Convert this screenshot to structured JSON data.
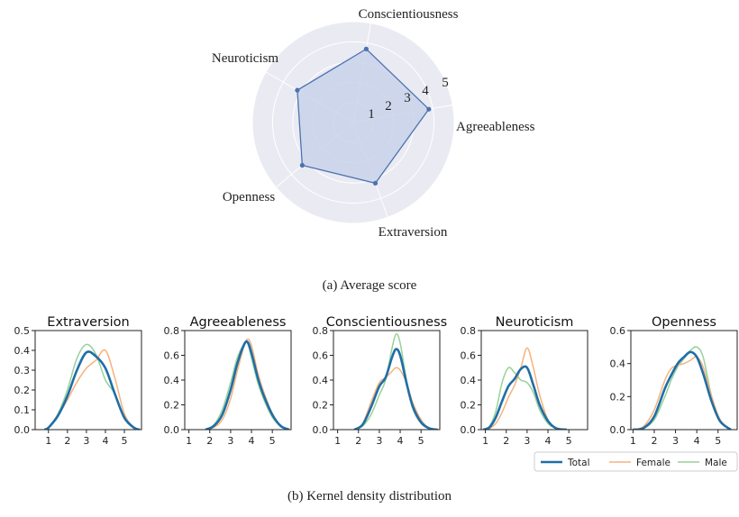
{
  "chart_data": [
    {
      "type": "radar",
      "caption": "(a) Average score",
      "axes": [
        "Agreeableness",
        "Conscientiousness",
        "Neuroticism",
        "Openness",
        "Extraversion"
      ],
      "values": [
        3.8,
        3.7,
        3.2,
        3.3,
        3.2
      ],
      "rlim": [
        0,
        5
      ],
      "rticks": [
        1,
        2,
        3,
        4,
        5
      ],
      "colors": {
        "line": "#4c72b0",
        "fill": "#c9d2ea",
        "background": "#eaeaf2"
      }
    },
    {
      "type": "line",
      "caption": "(b) Kernel density distribution",
      "legend": {
        "placement": "bottom-right",
        "entries": [
          "Total",
          "Female",
          "Male"
        ]
      },
      "colors": {
        "Total": "#1f6ea8",
        "Female": "#f7b27a",
        "Male": "#98d19a"
      },
      "panels": [
        {
          "title": "Extraversion",
          "xlim": [
            0.3,
            5.9
          ],
          "ylim": [
            0,
            0.5
          ],
          "xticks": [
            1,
            2,
            3,
            4,
            5
          ],
          "yticks": [
            0.0,
            0.1,
            0.2,
            0.3,
            0.4,
            0.5
          ],
          "ytick_labels": [
            "0.0",
            "0.1",
            "0.2",
            "0.3",
            "0.4",
            "0.5"
          ],
          "x": [
            0.8,
            1.0,
            1.5,
            2.0,
            2.5,
            3.0,
            3.5,
            4.0,
            4.5,
            5.0,
            5.5,
            5.8
          ],
          "series": [
            {
              "name": "Total",
              "values": [
                0.0,
                0.01,
                0.07,
                0.17,
                0.3,
                0.39,
                0.37,
                0.31,
                0.18,
                0.06,
                0.01,
                0.0
              ]
            },
            {
              "name": "Female",
              "values": [
                0.0,
                0.01,
                0.07,
                0.15,
                0.24,
                0.31,
                0.35,
                0.4,
                0.26,
                0.08,
                0.01,
                0.0
              ]
            },
            {
              "name": "Male",
              "values": [
                0.0,
                0.01,
                0.08,
                0.2,
                0.36,
                0.43,
                0.38,
                0.25,
                0.18,
                0.06,
                0.01,
                0.0
              ]
            }
          ]
        },
        {
          "title": "Agreeableness",
          "xlim": [
            0.8,
            5.9
          ],
          "ylim": [
            0,
            0.8
          ],
          "xticks": [
            1,
            2,
            3,
            4,
            5
          ],
          "yticks": [
            0.0,
            0.2,
            0.4,
            0.6,
            0.8
          ],
          "ytick_labels": [
            "0.0",
            "0.2",
            "0.4",
            "0.6",
            "0.8"
          ],
          "x": [
            1.8,
            2.2,
            2.6,
            3.0,
            3.3,
            3.6,
            3.8,
            4.0,
            4.3,
            4.6,
            5.0,
            5.4,
            5.8
          ],
          "series": [
            {
              "name": "Total",
              "values": [
                0.0,
                0.03,
                0.12,
                0.32,
                0.52,
                0.67,
                0.71,
                0.62,
                0.42,
                0.27,
                0.12,
                0.03,
                0.0
              ]
            },
            {
              "name": "Female",
              "values": [
                0.0,
                0.02,
                0.08,
                0.25,
                0.46,
                0.65,
                0.73,
                0.68,
                0.46,
                0.3,
                0.13,
                0.03,
                0.0
              ]
            },
            {
              "name": "Male",
              "values": [
                0.0,
                0.04,
                0.16,
                0.38,
                0.57,
                0.68,
                0.7,
                0.58,
                0.38,
                0.24,
                0.1,
                0.03,
                0.0
              ]
            }
          ]
        },
        {
          "title": "Conscientiousness",
          "xlim": [
            0.8,
            5.9
          ],
          "ylim": [
            0,
            0.8
          ],
          "xticks": [
            1,
            2,
            3,
            4,
            5
          ],
          "yticks": [
            0.0,
            0.2,
            0.4,
            0.6,
            0.8
          ],
          "ytick_labels": [
            "0.0",
            "0.2",
            "0.4",
            "0.6",
            "0.8"
          ],
          "x": [
            1.8,
            2.2,
            2.6,
            3.0,
            3.3,
            3.6,
            3.8,
            4.0,
            4.3,
            4.6,
            5.0,
            5.4,
            5.8
          ],
          "series": [
            {
              "name": "Total",
              "values": [
                0.0,
                0.04,
                0.18,
                0.35,
                0.42,
                0.58,
                0.65,
                0.6,
                0.38,
                0.19,
                0.06,
                0.01,
                0.0
              ]
            },
            {
              "name": "Female",
              "values": [
                0.0,
                0.05,
                0.22,
                0.38,
                0.42,
                0.47,
                0.5,
                0.48,
                0.38,
                0.22,
                0.08,
                0.01,
                0.0
              ]
            },
            {
              "name": "Male",
              "values": [
                0.0,
                0.03,
                0.12,
                0.28,
                0.4,
                0.65,
                0.77,
                0.7,
                0.4,
                0.17,
                0.05,
                0.01,
                0.0
              ]
            }
          ]
        },
        {
          "title": "Neuroticism",
          "xlim": [
            0.8,
            5.9
          ],
          "ylim": [
            0,
            0.8
          ],
          "xticks": [
            1,
            2,
            3,
            4,
            5
          ],
          "yticks": [
            0.0,
            0.2,
            0.4,
            0.6,
            0.8
          ],
          "ytick_labels": [
            "0.0",
            "0.2",
            "0.4",
            "0.6",
            "0.8"
          ],
          "x": [
            0.9,
            1.2,
            1.5,
            1.8,
            2.1,
            2.4,
            2.7,
            3.0,
            3.3,
            3.6,
            4.0,
            4.4,
            4.9
          ],
          "series": [
            {
              "name": "Total",
              "values": [
                0.0,
                0.02,
                0.1,
                0.23,
                0.35,
                0.41,
                0.49,
                0.5,
                0.36,
                0.2,
                0.07,
                0.01,
                0.0
              ]
            },
            {
              "name": "Female",
              "values": [
                0.0,
                0.01,
                0.05,
                0.14,
                0.26,
                0.36,
                0.5,
                0.66,
                0.5,
                0.28,
                0.08,
                0.01,
                0.0
              ]
            },
            {
              "name": "Male",
              "values": [
                0.0,
                0.03,
                0.15,
                0.38,
                0.5,
                0.46,
                0.4,
                0.38,
                0.3,
                0.16,
                0.05,
                0.01,
                0.0
              ]
            }
          ]
        },
        {
          "title": "Openness",
          "xlim": [
            0.9,
            5.9
          ],
          "ylim": [
            0,
            0.6
          ],
          "xticks": [
            1,
            2,
            3,
            4,
            5
          ],
          "yticks": [
            0.0,
            0.2,
            0.4,
            0.6
          ],
          "ytick_labels": [
            "0.0",
            "0.2",
            "0.4",
            "0.6"
          ],
          "x": [
            1.0,
            1.5,
            2.0,
            2.5,
            2.8,
            3.1,
            3.4,
            3.7,
            4.0,
            4.3,
            4.7,
            5.1,
            5.6
          ],
          "series": [
            {
              "name": "Total",
              "values": [
                0.0,
                0.01,
                0.08,
                0.25,
                0.33,
                0.4,
                0.44,
                0.47,
                0.44,
                0.34,
                0.17,
                0.05,
                0.0
              ]
            },
            {
              "name": "Female",
              "values": [
                0.0,
                0.02,
                0.12,
                0.3,
                0.37,
                0.39,
                0.4,
                0.42,
                0.44,
                0.38,
                0.2,
                0.06,
                0.0
              ]
            },
            {
              "name": "Male",
              "values": [
                0.0,
                0.01,
                0.06,
                0.2,
                0.3,
                0.38,
                0.43,
                0.48,
                0.5,
                0.44,
                0.2,
                0.05,
                0.0
              ]
            }
          ]
        }
      ]
    }
  ]
}
